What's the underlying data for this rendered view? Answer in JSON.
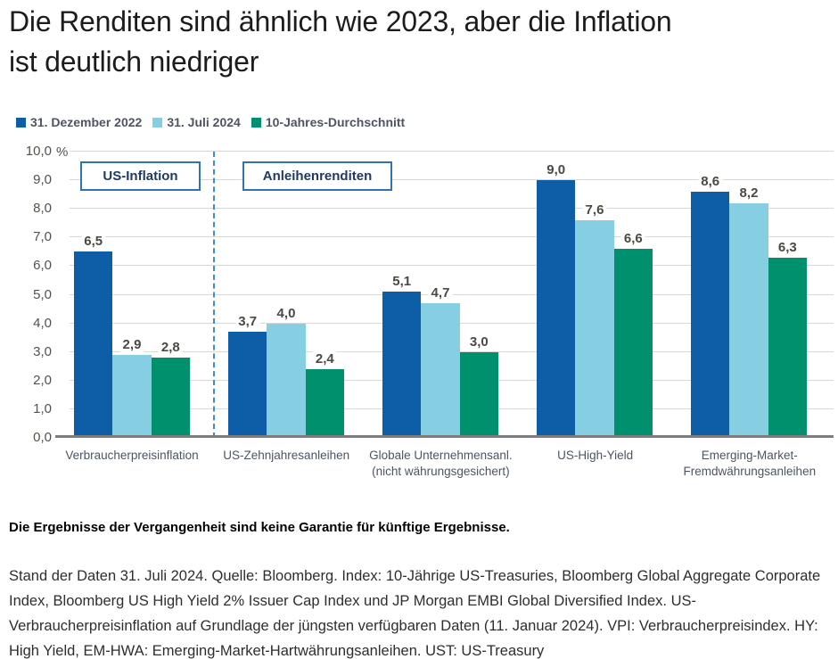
{
  "title": {
    "lines": [
      "Die Renditen sind ähnlich wie 2023, aber die Inflation",
      "ist deutlich niedriger"
    ]
  },
  "legend": [
    {
      "label": "31. Dezember 2022",
      "color": "#0d5ea6"
    },
    {
      "label": "31. Juli 2024",
      "color": "#86cee1"
    },
    {
      "label": "10-Jahres-Durchschnitt",
      "color": "#00906d"
    }
  ],
  "chart_data": {
    "type": "bar",
    "title": "Die Renditen sind ähnlich wie 2023, aber die Inflation ist deutlich niedriger",
    "ylabel": "%",
    "ylim": [
      0,
      10
    ],
    "ytick_step": 1.0,
    "ytick_labels": [
      "0,0",
      "1,0",
      "2,0",
      "3,0",
      "4,0",
      "5,0",
      "6,0",
      "7,0",
      "8,0",
      "9,0",
      "10,0"
    ],
    "grid": true,
    "legend_position": "top-left",
    "categories": [
      "Verbraucherpreisinflation",
      "US-Zehnjahresanleihen",
      "Globale Unternehmensanl.\n(nicht währungsgesichert)",
      "US-High-Yield",
      "Emerging-Market-\nFremdwährungsanleihen"
    ],
    "series": [
      {
        "name": "31. Dezember 2022",
        "color": "#0d5ea6",
        "values": [
          6.5,
          3.7,
          5.1,
          9.0,
          8.6
        ]
      },
      {
        "name": "31. Juli 2024",
        "color": "#86cee1",
        "values": [
          2.9,
          4.0,
          4.7,
          7.6,
          8.2
        ]
      },
      {
        "name": "10-Jahres-Durchschnitt",
        "color": "#00906d",
        "values": [
          2.8,
          2.4,
          3.0,
          6.6,
          6.3
        ]
      }
    ],
    "annotations": [
      {
        "label": "US-Inflation",
        "covers_categories": [
          0
        ]
      },
      {
        "label": "Anleihenrenditen",
        "covers_categories": [
          1,
          2,
          3,
          4
        ]
      }
    ],
    "separator": {
      "style": "dashed",
      "color": "#3e8ecd",
      "after_category_index": 0
    }
  },
  "axis": {
    "unit": "%"
  },
  "annotations": {
    "us_inflation": "US-Inflation",
    "bond_yields": "Anleihenrenditen"
  },
  "footer": {
    "disclaimer": "Die Ergebnisse der Vergangenheit sind keine Garantie für künftige Ergebnisse.",
    "source": "Stand der Daten 31. Juli 2024. Quelle: Bloomberg. Index: 10-Jährige US-Treasuries, Bloomberg Global Aggregate Corporate Index, Bloomberg US High Yield 2% Issuer Cap Index und JP Morgan EMBI Global Diversified Index. US-Verbraucherpreisinflation auf Grundlage der jüngsten verfügbaren Daten (11. Januar 2024). VPI: Verbraucherpreisindex. HY: High Yield, EM-HWA: Emerging-Market-Hartwährungsanleihen. UST: US-Treasury"
  }
}
